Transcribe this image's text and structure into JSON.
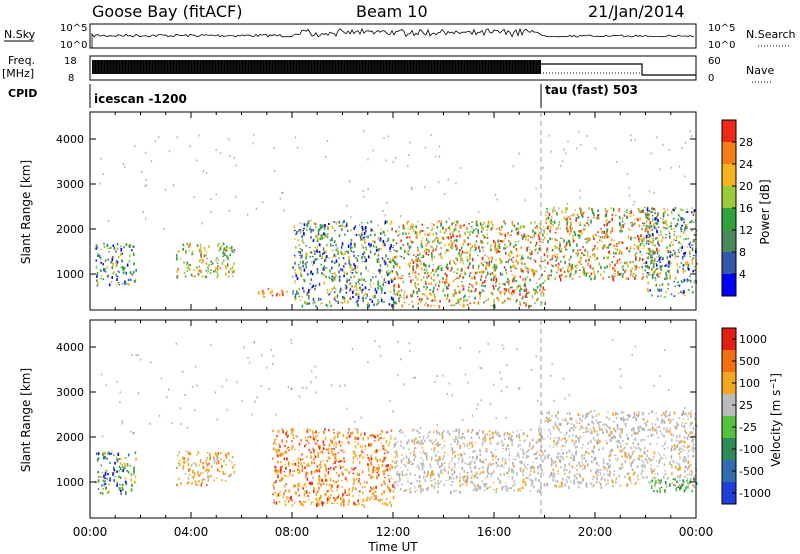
{
  "header": {
    "site": "Goose Bay (fitACF)",
    "beam": "Beam 10",
    "date": "21/Jan/2014"
  },
  "top_panels": {
    "nsky_label": "N.Sky",
    "nsky_ticks": [
      "10^5",
      "10^0"
    ],
    "nsearch_label": "N.Search",
    "nsearch_ticks": [
      "10^5",
      "10^0"
    ],
    "freq_label": "Freq.",
    "freq_unit": "[MHz]",
    "freq_ticks": [
      "18",
      "8"
    ],
    "nave_label": "Nave",
    "nave_ticks": [
      "60",
      "0"
    ],
    "cpid_label": "CPID",
    "cpid_segments": [
      {
        "label": "icescan -1200",
        "start_hour": 0
      },
      {
        "label": "tau (fast) 503",
        "start_hour": 18
      }
    ]
  },
  "chart_data": [
    {
      "type": "heatmap",
      "name": "power",
      "ylabel": "Slant Range [km]",
      "xlabel": "",
      "yticks": [
        "1000",
        "2000",
        "3000",
        "4000"
      ],
      "ylim": [
        200,
        4600
      ],
      "xlim": [
        0,
        24
      ],
      "colorbar": {
        "label": "Power [dB]",
        "ticks": [
          "4",
          "8",
          "12",
          "16",
          "20",
          "24",
          "28"
        ],
        "range": [
          0,
          32
        ],
        "colors": [
          "#0000ff",
          "#3358b0",
          "#4a8a5a",
          "#2fa33b",
          "#9bc93a",
          "#f7b21d",
          "#f77e17",
          "#ee2a16"
        ]
      },
      "scatter_regions": [
        {
          "t0": 0.2,
          "t1": 1.8,
          "r0": 750,
          "r1": 1700,
          "dominant": "mixed"
        },
        {
          "t0": 3.4,
          "t1": 5.7,
          "r0": 950,
          "r1": 1700,
          "dominant": "yellow-green"
        },
        {
          "t0": 6.6,
          "t1": 7.8,
          "r0": 500,
          "r1": 700,
          "dominant": "orange"
        },
        {
          "t0": 8.0,
          "t1": 12.0,
          "r0": 300,
          "r1": 2200,
          "dominant": "blue-green"
        },
        {
          "t0": 12.0,
          "t1": 18.0,
          "r0": 300,
          "r1": 2200,
          "dominant": "orange-red"
        },
        {
          "t0": 18.0,
          "t1": 22.5,
          "r0": 900,
          "r1": 2500,
          "dominant": "orange-red"
        },
        {
          "t0": 22.0,
          "t1": 24.0,
          "r0": 500,
          "r1": 2500,
          "dominant": "mixed"
        }
      ]
    },
    {
      "type": "heatmap",
      "name": "velocity",
      "ylabel": "Slant Range [km]",
      "xlabel": "Time UT",
      "xticks": [
        "00:00",
        "04:00",
        "08:00",
        "12:00",
        "16:00",
        "20:00",
        "00:00"
      ],
      "yticks": [
        "1000",
        "2000",
        "3000",
        "4000"
      ],
      "ylim": [
        200,
        4600
      ],
      "xlim": [
        0,
        24
      ],
      "colorbar": {
        "label": "Velocity [m s^-1]",
        "ticks": [
          "1000",
          "500",
          "100",
          "25",
          "-25",
          "-100",
          "-500",
          "-1000"
        ],
        "colors": [
          "#1f3fd8",
          "#2f6db0",
          "#2e8b57",
          "#56c23c",
          "#bbbbbb",
          "#f4a820",
          "#f07012",
          "#e02010"
        ]
      },
      "scatter_regions": [
        {
          "t0": 0.2,
          "t1": 1.8,
          "r0": 750,
          "r1": 1700,
          "dominant": "mixed"
        },
        {
          "t0": 3.4,
          "t1": 5.7,
          "r0": 950,
          "r1": 1700,
          "dominant": "orange-yellow"
        },
        {
          "t0": 7.2,
          "t1": 12.0,
          "r0": 500,
          "r1": 2200,
          "dominant": "orange"
        },
        {
          "t0": 12.0,
          "t1": 18.0,
          "r0": 800,
          "r1": 2200,
          "dominant": "grey"
        },
        {
          "t0": 18.0,
          "t1": 24.0,
          "r0": 900,
          "r1": 2600,
          "dominant": "grey"
        },
        {
          "t0": 22.2,
          "t1": 24.0,
          "r0": 800,
          "r1": 1100,
          "dominant": "green"
        }
      ]
    }
  ]
}
